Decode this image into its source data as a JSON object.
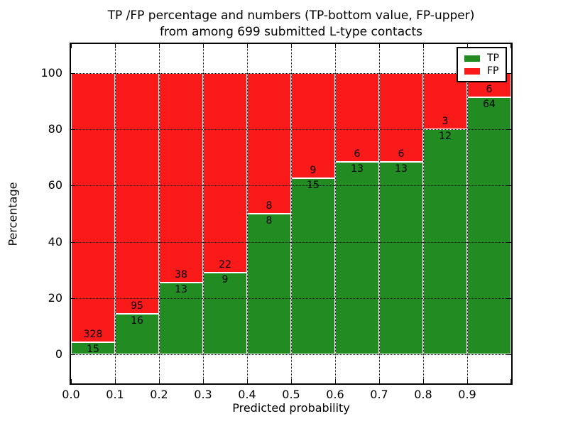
{
  "figure": {
    "title_line1": "TP /FP percentage and numbers (TP-bottom value, FP-upper)",
    "title_line2": "from among 699 submitted L-type contacts"
  },
  "chart_data": {
    "type": "bar",
    "stacked": true,
    "title": "TP /FP percentage and numbers (TP-bottom value, FP-upper)\nfrom among 699 submitted L-type contacts",
    "xlabel": "Predicted probability",
    "ylabel": "Percentage",
    "x_bin_edges": [
      0.0,
      0.1,
      0.2,
      0.3,
      0.4,
      0.5,
      0.6,
      0.7,
      0.8,
      0.9,
      1.0
    ],
    "x_tick_labels": [
      "0.0",
      "0.1",
      "0.2",
      "0.3",
      "0.4",
      "0.5",
      "0.6",
      "0.7",
      "0.8",
      "0.9"
    ],
    "y_ticks": [
      0,
      20,
      40,
      60,
      80,
      100
    ],
    "y_tick_labels": [
      "0",
      "20",
      "40",
      "60",
      "80",
      "100"
    ],
    "xlim": [
      0.0,
      1.0
    ],
    "ylim": [
      -10.3,
      110.3
    ],
    "grid": true,
    "grid_style": "dotted",
    "legend_position": "upper right",
    "series": [
      {
        "name": "TP",
        "color": "#228b22",
        "counts": [
          15,
          16,
          13,
          9,
          8,
          15,
          13,
          13,
          12,
          64
        ]
      },
      {
        "name": "FP",
        "color": "#fb1a1a",
        "counts": [
          328,
          95,
          38,
          22,
          8,
          9,
          6,
          6,
          3,
          6
        ]
      }
    ],
    "tp_percent_of_bin": [
      4.37,
      14.41,
      25.49,
      29.03,
      50.0,
      62.5,
      68.42,
      68.42,
      80.0,
      91.43
    ],
    "total_contacts": 699
  }
}
